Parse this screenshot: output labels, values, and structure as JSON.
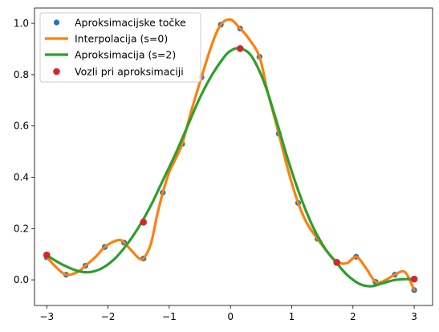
{
  "chart_data": {
    "type": "line",
    "title": "",
    "xlabel": "",
    "ylabel": "",
    "xlim": [
      -3.2,
      3.3
    ],
    "ylim": [
      -0.1,
      1.06
    ],
    "xticks": [
      -3,
      -2,
      -1,
      0,
      1,
      2,
      3
    ],
    "xtick_labels": [
      "−3",
      "−2",
      "−1",
      "0",
      "1",
      "2",
      "3"
    ],
    "yticks": [
      0.0,
      0.2,
      0.4,
      0.6,
      0.8,
      1.0
    ],
    "ytick_labels": [
      "0.0",
      "0.2",
      "0.4",
      "0.6",
      "0.8",
      "1.0"
    ],
    "grid": false,
    "legend_position": "upper-left",
    "colors": {
      "points": "#1f77b4",
      "interpolation": "#ff7f0e",
      "approximation": "#2ca02c",
      "knots": "#d62728"
    },
    "series": [
      {
        "name": "Aproksimacijske točke",
        "kind": "scatter",
        "x": [
          -3.0,
          -2.684,
          -2.368,
          -2.053,
          -1.737,
          -1.421,
          -1.105,
          -0.789,
          -0.474,
          -0.158,
          0.158,
          0.474,
          0.789,
          1.105,
          1.421,
          1.737,
          2.053,
          2.368,
          2.684,
          3.0
        ],
        "y": [
          0.088,
          0.02,
          0.055,
          0.128,
          0.145,
          0.083,
          0.34,
          0.53,
          0.79,
          0.995,
          0.98,
          0.87,
          0.57,
          0.3,
          0.16,
          0.07,
          0.09,
          -0.008,
          0.02,
          -0.04
        ]
      },
      {
        "name": "Interpolacija (s=0)",
        "kind": "line",
        "x": [
          -3.0,
          -2.85,
          -2.684,
          -2.5,
          -2.368,
          -2.2,
          -2.053,
          -1.9,
          -1.8,
          -1.737,
          -1.6,
          -1.5,
          -1.421,
          -1.3,
          -1.2,
          -1.105,
          -1.0,
          -0.9,
          -0.789,
          -0.65,
          -0.474,
          -0.3,
          -0.158,
          0.0,
          0.158,
          0.3,
          0.474,
          0.6,
          0.789,
          0.95,
          1.105,
          1.25,
          1.421,
          1.58,
          1.737,
          1.9,
          2.053,
          2.2,
          2.368,
          2.5,
          2.684,
          2.85,
          3.0
        ],
        "y": [
          0.088,
          0.05,
          0.02,
          0.03,
          0.055,
          0.09,
          0.128,
          0.15,
          0.155,
          0.145,
          0.11,
          0.085,
          0.083,
          0.14,
          0.25,
          0.34,
          0.42,
          0.47,
          0.53,
          0.65,
          0.79,
          0.92,
          0.995,
          1.015,
          0.98,
          0.94,
          0.87,
          0.74,
          0.57,
          0.42,
          0.3,
          0.22,
          0.16,
          0.11,
          0.07,
          0.065,
          0.09,
          0.05,
          -0.008,
          -0.005,
          0.02,
          0.03,
          -0.04
        ]
      },
      {
        "name": "Aproksimacija (s=2)",
        "kind": "line",
        "x": [
          -3.0,
          -2.75,
          -2.5,
          -2.3,
          -2.1,
          -1.9,
          -1.7,
          -1.5,
          -1.3,
          -1.1,
          -0.9,
          -0.7,
          -0.5,
          -0.3,
          -0.1,
          0.0,
          0.1,
          0.2,
          0.35,
          0.55,
          0.75,
          0.95,
          1.15,
          1.35,
          1.55,
          1.737,
          1.9,
          2.1,
          2.3,
          2.5,
          2.7,
          2.9,
          3.0
        ],
        "y": [
          0.095,
          0.06,
          0.035,
          0.03,
          0.045,
          0.08,
          0.135,
          0.205,
          0.29,
          0.39,
          0.49,
          0.6,
          0.71,
          0.8,
          0.87,
          0.893,
          0.903,
          0.9,
          0.87,
          0.77,
          0.62,
          0.46,
          0.32,
          0.205,
          0.12,
          0.065,
          0.02,
          -0.015,
          -0.025,
          -0.012,
          0.0,
          0.003,
          0.003
        ]
      },
      {
        "name": "Vozli pri aproksimaciji",
        "kind": "scatter",
        "x": [
          -3.0,
          -1.421,
          0.158,
          1.737,
          3.0
        ],
        "y": [
          0.097,
          0.225,
          0.902,
          0.068,
          0.003
        ]
      }
    ]
  }
}
